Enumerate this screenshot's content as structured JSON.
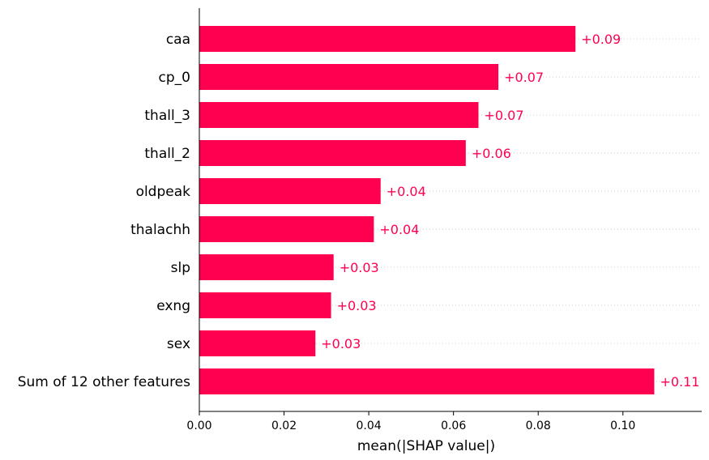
{
  "chart_data": {
    "type": "bar",
    "orientation": "horizontal",
    "categories": [
      "caa",
      "cp_0",
      "thall_3",
      "thall_2",
      "oldpeak",
      "thalachh",
      "slp",
      "exng",
      "sex",
      "Sum of 12 other features"
    ],
    "values": [
      0.0888,
      0.0706,
      0.0659,
      0.0629,
      0.0428,
      0.0412,
      0.0317,
      0.0311,
      0.0274,
      0.1074
    ],
    "value_labels": [
      "+0.09",
      "+0.07",
      "+0.07",
      "+0.06",
      "+0.04",
      "+0.04",
      "+0.03",
      "+0.03",
      "+0.03",
      "+0.11"
    ],
    "xlabel": "mean(|SHAP value|)",
    "ylabel": "",
    "xlim": [
      0,
      0.1186
    ],
    "xticks": [
      0.0,
      0.02,
      0.04,
      0.06,
      0.08,
      0.1
    ],
    "xtick_labels": [
      "0.00",
      "0.02",
      "0.04",
      "0.06",
      "0.08",
      "0.10"
    ],
    "grid": "dotted horizontal guide lines per row",
    "legend": "none",
    "colors": {
      "bar": "#ff0051",
      "value_label": "#ff0051",
      "axis": "#000000",
      "guide": "#cccccc"
    }
  }
}
